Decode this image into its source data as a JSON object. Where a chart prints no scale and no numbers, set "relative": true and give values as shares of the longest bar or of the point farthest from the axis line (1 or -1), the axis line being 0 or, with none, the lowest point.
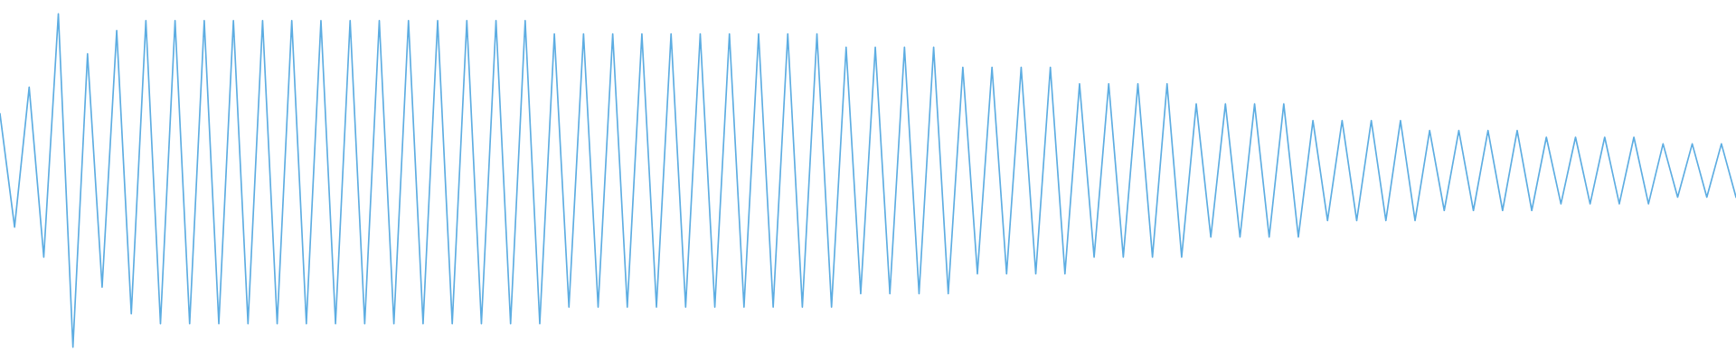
{
  "chart_data": {
    "type": "line",
    "relative": true,
    "line_style": "solid",
    "marker": "none",
    "categories": [
      null,
      null,
      null,
      null,
      null,
      null,
      null,
      null,
      null,
      null,
      null,
      null,
      null,
      null,
      null,
      null,
      null,
      null,
      null,
      null,
      null,
      null,
      null,
      null,
      null,
      null,
      null,
      null,
      null,
      null,
      null,
      null,
      null,
      null,
      null,
      null,
      null,
      null,
      null,
      null,
      null,
      null,
      null,
      null,
      null,
      null,
      null,
      null,
      null,
      null,
      null,
      null,
      null,
      null,
      null,
      null,
      null,
      null,
      null,
      null,
      null,
      null,
      null,
      null,
      null,
      null,
      null,
      null,
      null,
      null,
      null,
      null,
      null,
      null,
      null,
      null,
      null,
      null,
      null,
      null,
      null,
      null,
      null,
      null,
      null,
      null,
      null,
      null,
      null,
      null,
      null,
      null,
      null,
      null,
      null,
      null,
      null,
      null,
      null,
      null,
      null,
      null,
      null,
      null,
      null,
      null,
      null,
      null,
      null,
      null,
      null,
      null,
      null,
      null,
      null,
      null,
      null,
      null,
      null,
      null
    ],
    "series": [
      {
        "color": "#5dade2",
        "values": [
          0.7,
          0.36,
          0.78,
          0.27,
          1.0,
          0.0,
          0.88,
          0.18,
          0.95,
          0.1,
          0.98,
          0.07,
          0.98,
          0.07,
          0.98,
          0.07,
          0.98,
          0.07,
          0.98,
          0.07,
          0.98,
          0.07,
          0.98,
          0.07,
          0.98,
          0.07,
          0.98,
          0.07,
          0.98,
          0.07,
          0.98,
          0.07,
          0.98,
          0.07,
          0.98,
          0.07,
          0.98,
          0.07,
          0.94,
          0.12,
          0.94,
          0.12,
          0.94,
          0.12,
          0.94,
          0.12,
          0.94,
          0.12,
          0.94,
          0.12,
          0.94,
          0.12,
          0.94,
          0.12,
          0.94,
          0.12,
          0.94,
          0.12,
          0.9,
          0.16,
          0.9,
          0.16,
          0.9,
          0.16,
          0.9,
          0.16,
          0.84,
          0.22,
          0.84,
          0.22,
          0.84,
          0.22,
          0.84,
          0.22,
          0.79,
          0.27,
          0.79,
          0.27,
          0.79,
          0.27,
          0.79,
          0.27,
          0.73,
          0.33,
          0.73,
          0.33,
          0.73,
          0.33,
          0.73,
          0.33,
          0.68,
          0.38,
          0.68,
          0.38,
          0.68,
          0.38,
          0.68,
          0.38,
          0.65,
          0.41,
          0.65,
          0.41,
          0.65,
          0.41,
          0.65,
          0.41,
          0.63,
          0.43,
          0.63,
          0.43,
          0.63,
          0.43,
          0.63,
          0.43,
          0.61,
          0.45,
          0.61,
          0.45,
          0.61,
          0.45
        ]
      }
    ]
  }
}
